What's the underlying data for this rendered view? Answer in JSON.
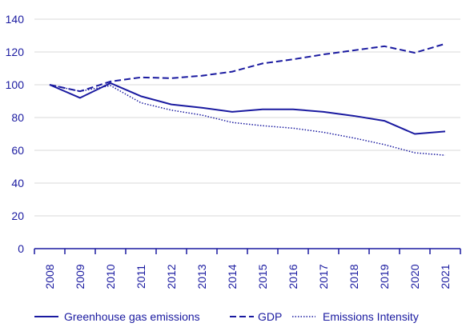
{
  "chart_data": {
    "type": "line",
    "title": "",
    "xlabel": "",
    "ylabel": "",
    "x": [
      "2008",
      "2009",
      "2010",
      "2011",
      "2012",
      "2013",
      "2014",
      "2015",
      "2016",
      "2017",
      "2018",
      "2019",
      "2020",
      "2021"
    ],
    "ylim": [
      0,
      140
    ],
    "yticks": [
      0,
      20,
      40,
      60,
      80,
      100,
      120,
      140
    ],
    "grid": "horizontal",
    "legend_position": "bottom",
    "series_color": "#1a1aa0",
    "grid_color": "#d9d9d9",
    "series": [
      {
        "name": "Greenhouse gas emissions",
        "style": "solid",
        "values": [
          100,
          92,
          101,
          93,
          88,
          86,
          83.5,
          85,
          85,
          83.5,
          81,
          78,
          70,
          71.5
        ]
      },
      {
        "name": "GDP",
        "style": "dashed",
        "values": [
          100,
          96,
          102,
          104.5,
          104,
          105.5,
          108,
          113,
          115.5,
          118.5,
          121,
          123.5,
          119.5,
          125
        ]
      },
      {
        "name": "Emissions Intensity",
        "style": "dotted",
        "values": [
          100,
          96,
          99.5,
          89,
          84.5,
          81.5,
          77,
          75,
          73.5,
          71,
          67.5,
          63.5,
          58.5,
          57
        ]
      }
    ]
  }
}
